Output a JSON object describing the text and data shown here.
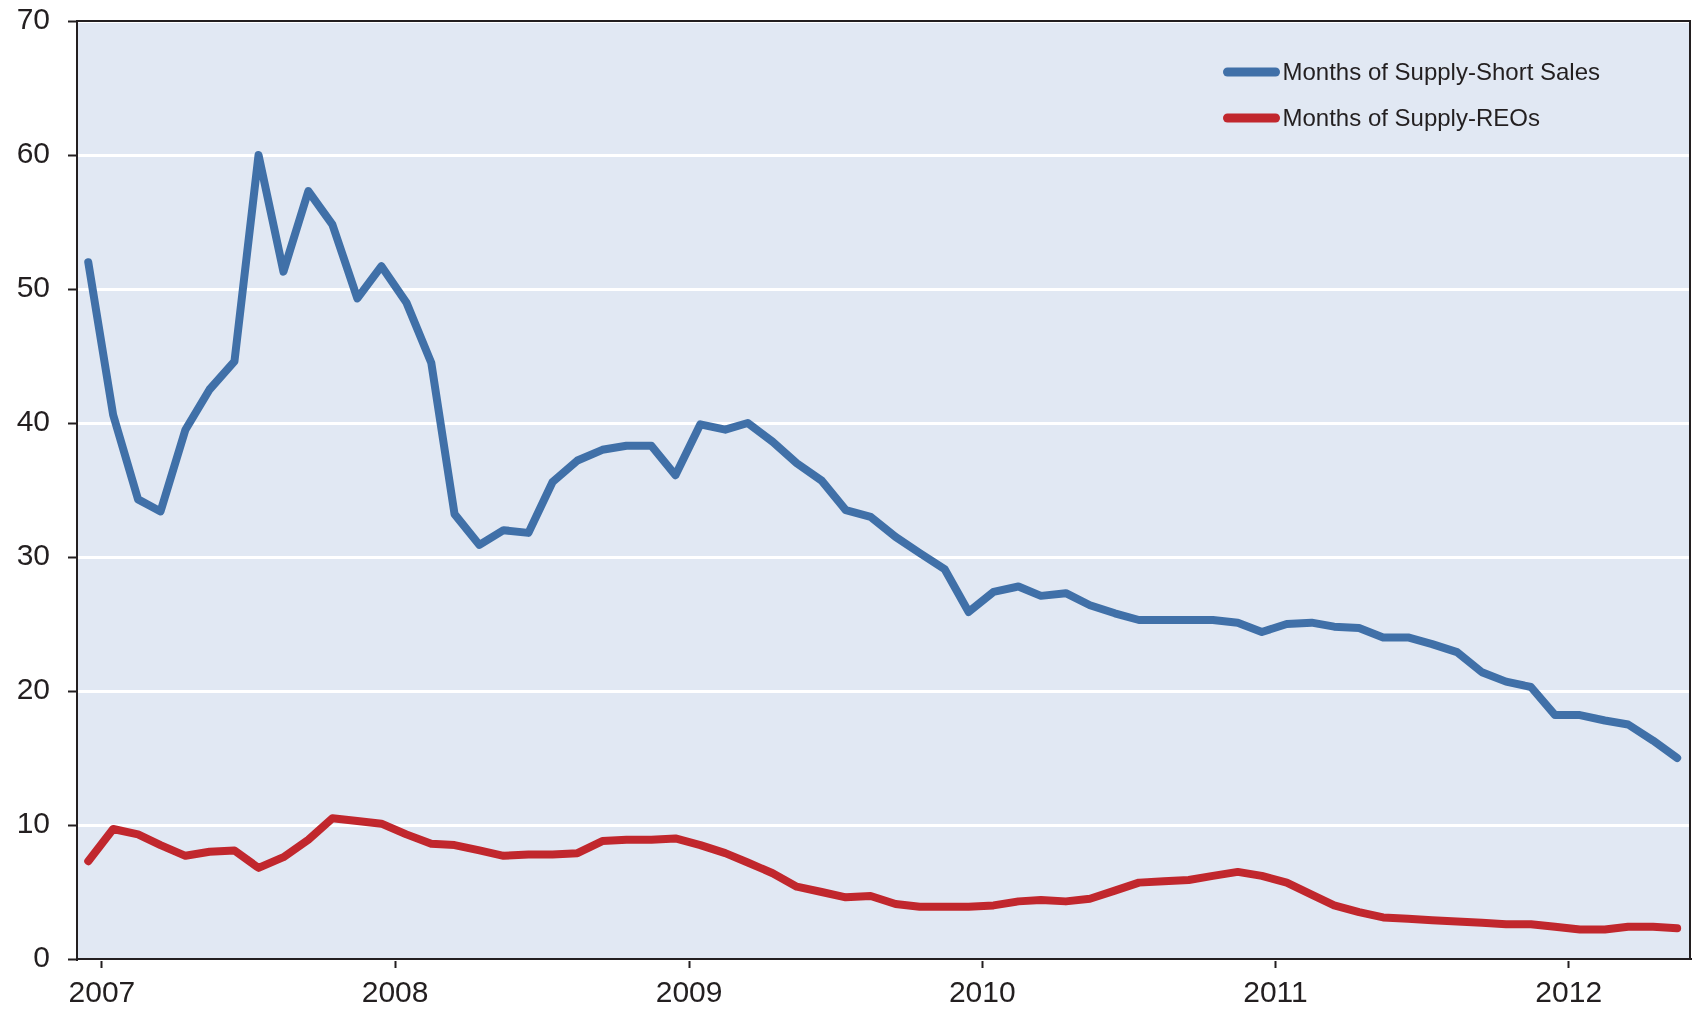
{
  "chart_data": {
    "type": "line",
    "x": [
      "2006-12-15",
      "2007-01-15",
      "2007-02-15",
      "2007-03-15",
      "2007-04-15",
      "2007-05-15",
      "2007-06-15",
      "2007-07-15",
      "2007-08-15",
      "2007-09-15",
      "2007-10-15",
      "2007-11-15",
      "2007-12-15",
      "2008-01-15",
      "2008-02-15",
      "2008-03-15",
      "2008-04-15",
      "2008-05-15",
      "2008-06-15",
      "2008-07-15",
      "2008-08-15",
      "2008-09-15",
      "2008-10-15",
      "2008-11-15",
      "2008-12-15",
      "2009-01-15",
      "2009-02-15",
      "2009-03-15",
      "2009-04-15",
      "2009-05-15",
      "2009-06-15",
      "2009-07-15",
      "2009-08-15",
      "2009-09-15",
      "2009-10-15",
      "2009-11-15",
      "2009-12-15",
      "2010-01-15",
      "2010-02-15",
      "2010-03-15",
      "2010-04-15",
      "2010-05-15",
      "2010-06-15",
      "2010-07-15",
      "2010-08-15",
      "2010-09-15",
      "2010-10-15",
      "2010-11-15",
      "2010-12-15",
      "2011-01-15",
      "2011-02-15",
      "2011-03-15",
      "2011-04-15",
      "2011-05-15",
      "2011-06-15",
      "2011-07-15",
      "2011-08-15",
      "2011-09-15",
      "2011-10-15",
      "2011-11-15",
      "2011-12-15",
      "2012-01-15",
      "2012-02-15",
      "2012-03-15",
      "2012-04-15",
      "2012-05-15"
    ],
    "series": [
      {
        "name": "Months of Supply-Short Sales",
        "color": "#4070a8",
        "values": [
          52.0,
          40.6,
          34.3,
          33.4,
          39.5,
          42.5,
          44.6,
          60.0,
          51.3,
          57.3,
          54.8,
          49.3,
          51.7,
          49.0,
          44.5,
          33.2,
          30.9,
          32.0,
          31.8,
          35.6,
          37.2,
          38.0,
          38.3,
          38.3,
          36.1,
          39.9,
          39.5,
          40.0,
          38.6,
          37.0,
          35.7,
          33.5,
          33.0,
          31.5,
          30.3,
          29.1,
          25.9,
          27.4,
          27.8,
          27.1,
          27.3,
          26.4,
          25.8,
          25.3,
          25.3,
          25.3,
          25.3,
          25.1,
          24.4,
          25.0,
          25.1,
          24.8,
          24.7,
          24.0,
          24.0,
          23.5,
          22.9,
          21.4,
          20.7,
          20.3,
          18.2,
          18.2,
          17.8,
          17.5,
          16.3,
          15.0
        ]
      },
      {
        "name": "Months of Supply-REOs",
        "color": "#c1272d",
        "values": [
          7.3,
          9.7,
          9.3,
          8.5,
          7.7,
          8.0,
          8.1,
          6.8,
          7.6,
          8.9,
          10.5,
          10.3,
          10.1,
          9.3,
          8.6,
          8.5,
          8.1,
          7.7,
          7.8,
          7.8,
          7.9,
          8.8,
          8.9,
          8.9,
          9.0,
          8.5,
          7.9,
          7.2,
          6.4,
          5.4,
          5.0,
          4.6,
          4.7,
          4.1,
          3.9,
          3.9,
          3.9,
          4.0,
          4.3,
          4.4,
          4.3,
          4.5,
          5.1,
          5.7,
          5.8,
          5.9,
          6.2,
          6.5,
          6.2,
          5.7,
          4.8,
          4.0,
          3.5,
          3.1,
          3.0,
          2.9,
          2.8,
          2.7,
          2.6,
          2.6,
          2.4,
          2.2,
          2.2,
          2.4,
          2.4,
          2.3
        ]
      }
    ],
    "xlim": [
      "2006-12-01",
      "2012-05-31"
    ],
    "xticks": [
      "2007",
      "2008",
      "2009",
      "2010",
      "2011",
      "2012"
    ],
    "ylim": [
      0,
      70
    ],
    "yticks": [
      0,
      10,
      20,
      30,
      40,
      50,
      60,
      70
    ],
    "grid": "y",
    "legend": "top right",
    "line_style": "solid"
  }
}
